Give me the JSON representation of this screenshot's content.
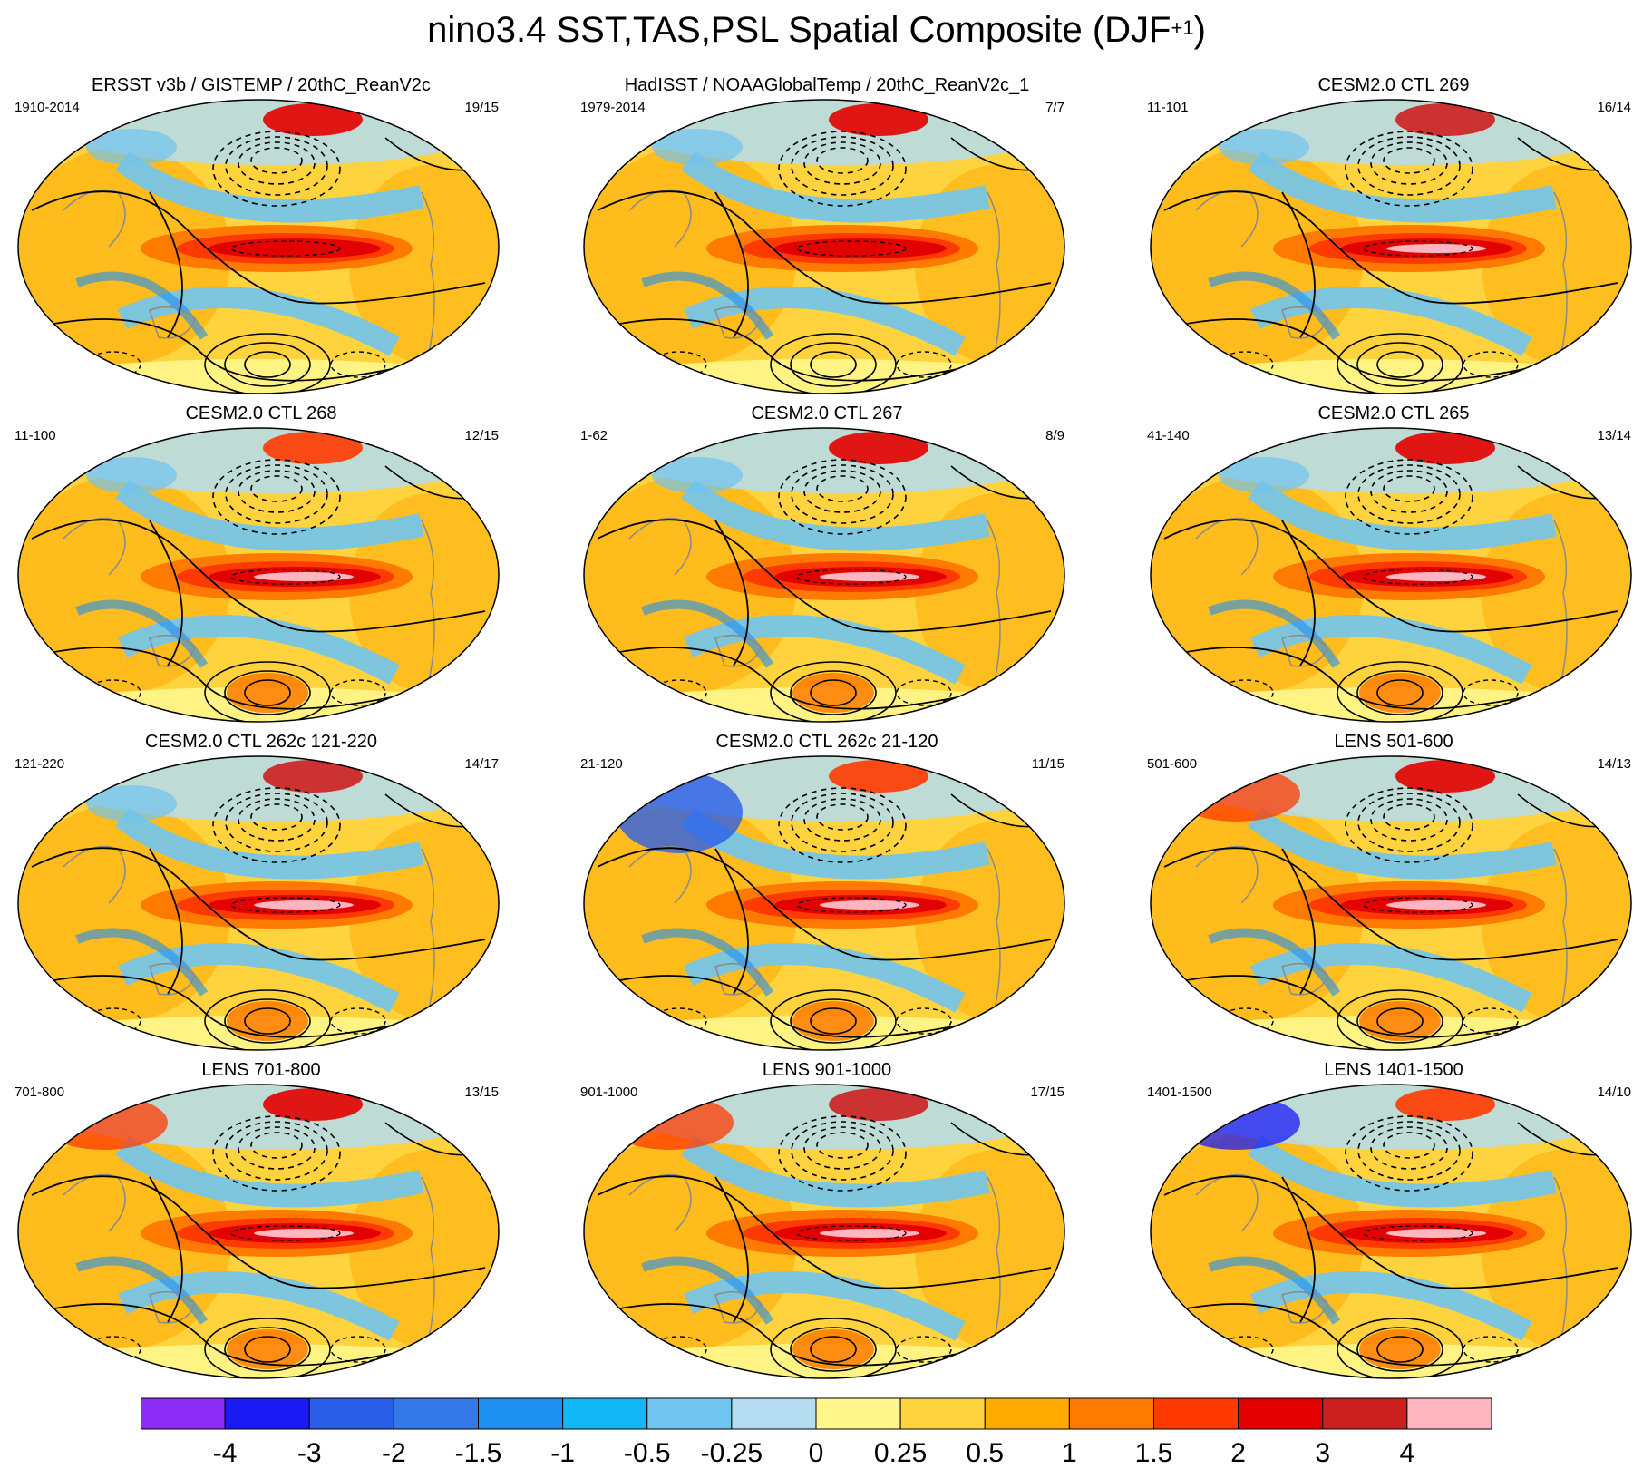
{
  "title": {
    "main": "nino3.4 SST,TAS,PSL Spatial Composite (DJF",
    "sup": "+1",
    "close": ")"
  },
  "chart_data": {
    "type": "heatmap",
    "description_variable": "SST/TAS anomaly shading with PSL contours",
    "panels": [
      {
        "title": "ERSST v3b / GISTEMP / 20thC_ReanV2c",
        "years": "1910-2014",
        "count": "19/15",
        "variant": 0
      },
      {
        "title": "HadISST / NOAAGlobalTemp / 20thC_ReanV2c_1",
        "years": "1979-2014",
        "count": "7/7",
        "variant": 1
      },
      {
        "title": "CESM2.0 CTL 269",
        "years": "11-101",
        "count": "16/14",
        "variant": 2
      },
      {
        "title": "CESM2.0 CTL 268",
        "years": "11-100",
        "count": "12/15",
        "variant": 3
      },
      {
        "title": "CESM2.0 CTL 267",
        "years": "1-62",
        "count": "8/9",
        "variant": 4
      },
      {
        "title": "CESM2.0 CTL 265",
        "years": "41-140",
        "count": "13/14",
        "variant": 5
      },
      {
        "title": "CESM2.0 CTL 262c 121-220",
        "years": "121-220",
        "count": "14/17",
        "variant": 6
      },
      {
        "title": "CESM2.0 CTL 262c 21-120",
        "years": "21-120",
        "count": "11/15",
        "variant": 7
      },
      {
        "title": "LENS 501-600",
        "years": "501-600",
        "count": "14/13",
        "variant": 8
      },
      {
        "title": "LENS 701-800",
        "years": "701-800",
        "count": "13/15",
        "variant": 9
      },
      {
        "title": "LENS 901-1000",
        "years": "901-1000",
        "count": "17/15",
        "variant": 10
      },
      {
        "title": "LENS 1401-1500",
        "years": "1401-1500",
        "count": "14/10",
        "variant": 11
      }
    ],
    "colorbar": {
      "levels": [
        "-4",
        "-3",
        "-2",
        "-1.5",
        "-1",
        "-0.5",
        "-0.25",
        "0",
        "0.25",
        "0.5",
        "1",
        "1.5",
        "2",
        "3",
        "4"
      ],
      "colors": [
        "#8c2cf7",
        "#1a1af5",
        "#2b5ee8",
        "#3579e8",
        "#1e90f0",
        "#12b8f5",
        "#70c4f0",
        "#b4dcf0",
        "#fff68c",
        "#ffd33e",
        "#ffaa00",
        "#ff7a00",
        "#ff3a00",
        "#e30000",
        "#cc1f1f",
        "#ffb6c1"
      ]
    }
  }
}
